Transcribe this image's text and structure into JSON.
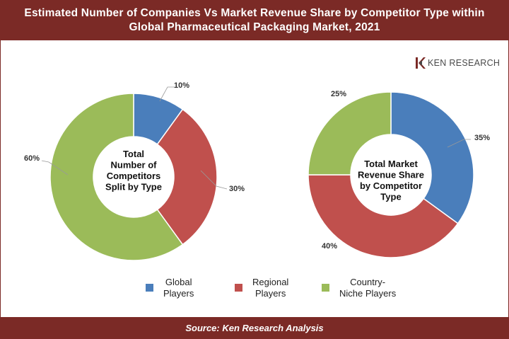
{
  "title_line1": "Estimated Number of Companies Vs Market Revenue Share by Competitor Type within",
  "title_line2": "Global Pharmaceutical Packaging Market, 2021",
  "brand": "KEN RESEARCH",
  "source": "Source: Ken Research Analysis",
  "colors": {
    "global": "#4a7ebb",
    "regional": "#c0504d",
    "niche": "#9bbb59",
    "bar": "#7b2a26"
  },
  "chart_data": [
    {
      "type": "pie",
      "title": "Total Number of Competitors Split by Type",
      "labels": [
        "Global Players",
        "Regional Players",
        "Country-Niche Players"
      ],
      "values": [
        10,
        30,
        60
      ],
      "value_labels": [
        "10%",
        "30%",
        "60%"
      ],
      "center_lines": [
        "Total",
        "Number of",
        "Competitors",
        "Split by Type"
      ]
    },
    {
      "type": "pie",
      "title": "Total Market Revenue Share by Competitor Type",
      "labels": [
        "Global Players",
        "Regional Players",
        "Country-Niche Players"
      ],
      "values": [
        35,
        40,
        25
      ],
      "value_labels": [
        "35%",
        "40%",
        "25%"
      ],
      "center_lines": [
        "Total Market",
        "Revenue Share",
        "by Competitor",
        "Type"
      ]
    }
  ],
  "legend": [
    {
      "lines": [
        "Global",
        "Players"
      ],
      "color": "#4a7ebb"
    },
    {
      "lines": [
        "Regional",
        "Players"
      ],
      "color": "#c0504d"
    },
    {
      "lines": [
        "Country-",
        "Niche Players"
      ],
      "color": "#9bbb59"
    }
  ]
}
